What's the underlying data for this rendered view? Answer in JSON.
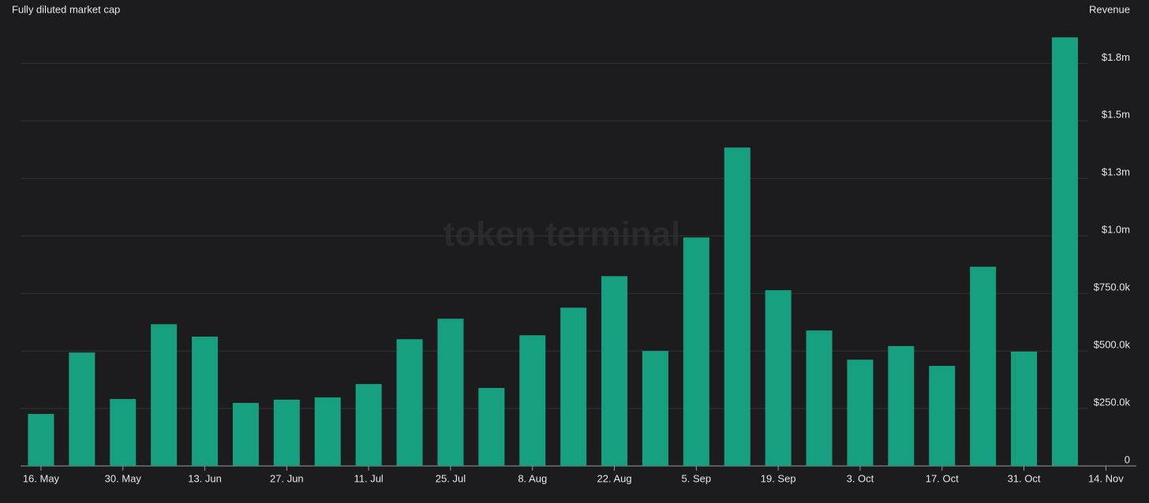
{
  "chart_data": {
    "type": "bar",
    "left_label": "Fully diluted market cap",
    "right_label": "Revenue",
    "watermark": "token terminal",
    "color": "#17a080",
    "grid": true,
    "values": [
      226000,
      493000,
      291000,
      616000,
      562000,
      274000,
      288000,
      298000,
      356000,
      551000,
      640000,
      339000,
      568000,
      688000,
      825000,
      500000,
      993000,
      1384000,
      764000,
      589000,
      462000,
      521000,
      435000,
      866000,
      497000,
      1863000
    ],
    "xticks": [
      "16. May",
      "30. May",
      "13. Jun",
      "27. Jun",
      "11. Jul",
      "25. Jul",
      "8. Aug",
      "22. Aug",
      "5. Sep",
      "19. Sep",
      "3. Oct",
      "17. Oct",
      "31. Oct",
      "14. Nov"
    ],
    "ylim": [
      0,
      1950000
    ],
    "yticks": [
      0,
      {
        "value": 250000,
        "label": "$250.0k"
      },
      {
        "value": 500000,
        "label": "$500.0k"
      },
      {
        "value": 750000,
        "label": "$750.0k"
      },
      {
        "value": 1000000,
        "label": "$1.0m"
      },
      {
        "value": 1250000,
        "label": "$1.3m"
      },
      {
        "value": 1500000,
        "label": "$1.5m"
      },
      {
        "value": 1750000,
        "label": "$1.8m"
      }
    ]
  }
}
